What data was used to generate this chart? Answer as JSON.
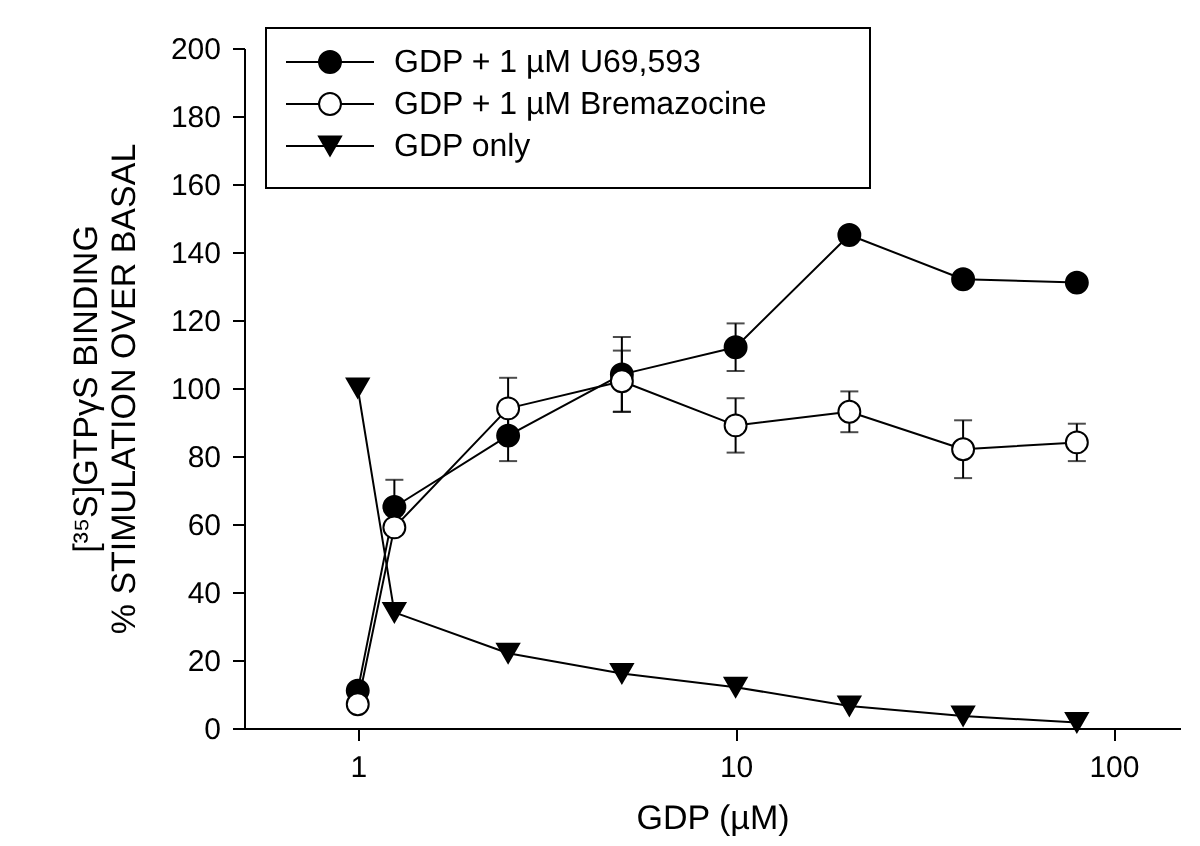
{
  "chart_data": {
    "type": "line",
    "xlabel": "GDP (µM)",
    "ylabel": "[³⁵S]GTPγS BINDING\n% STIMULATION OVER BASAL",
    "x": [
      1,
      1.25,
      2.5,
      5,
      10,
      20,
      40,
      80
    ],
    "series": [
      {
        "name": "GDP + 1 µM U69,593",
        "color": "#000000",
        "marker": "circle",
        "values": [
          11,
          65,
          86,
          104,
          112,
          145,
          132,
          131
        ],
        "errors": [
          null,
          8,
          7.5,
          11,
          7,
          null,
          null,
          null
        ]
      },
      {
        "name": "GDP + 1 µM Bremazocine",
        "color": "#ffffff",
        "marker": "circle",
        "values": [
          7,
          59,
          94,
          102,
          89,
          93,
          82,
          84
        ],
        "errors": [
          null,
          null,
          9,
          9,
          8,
          6,
          8.5,
          5.5
        ]
      },
      {
        "name": "GDP only",
        "color": "#000000",
        "marker": "triangle",
        "values": [
          100,
          34,
          22,
          16,
          12,
          6.5,
          3.5,
          1.6
        ]
      }
    ],
    "log": "x",
    "xlim": [
      0.5,
      150
    ],
    "xticks": [
      1,
      10,
      100
    ],
    "ylim": [
      0,
      200
    ],
    "yticks": [
      0,
      20,
      40,
      60,
      80,
      100,
      120,
      140,
      160,
      180,
      200
    ],
    "grid": false,
    "legend": "top left",
    "line_style": "solid"
  }
}
